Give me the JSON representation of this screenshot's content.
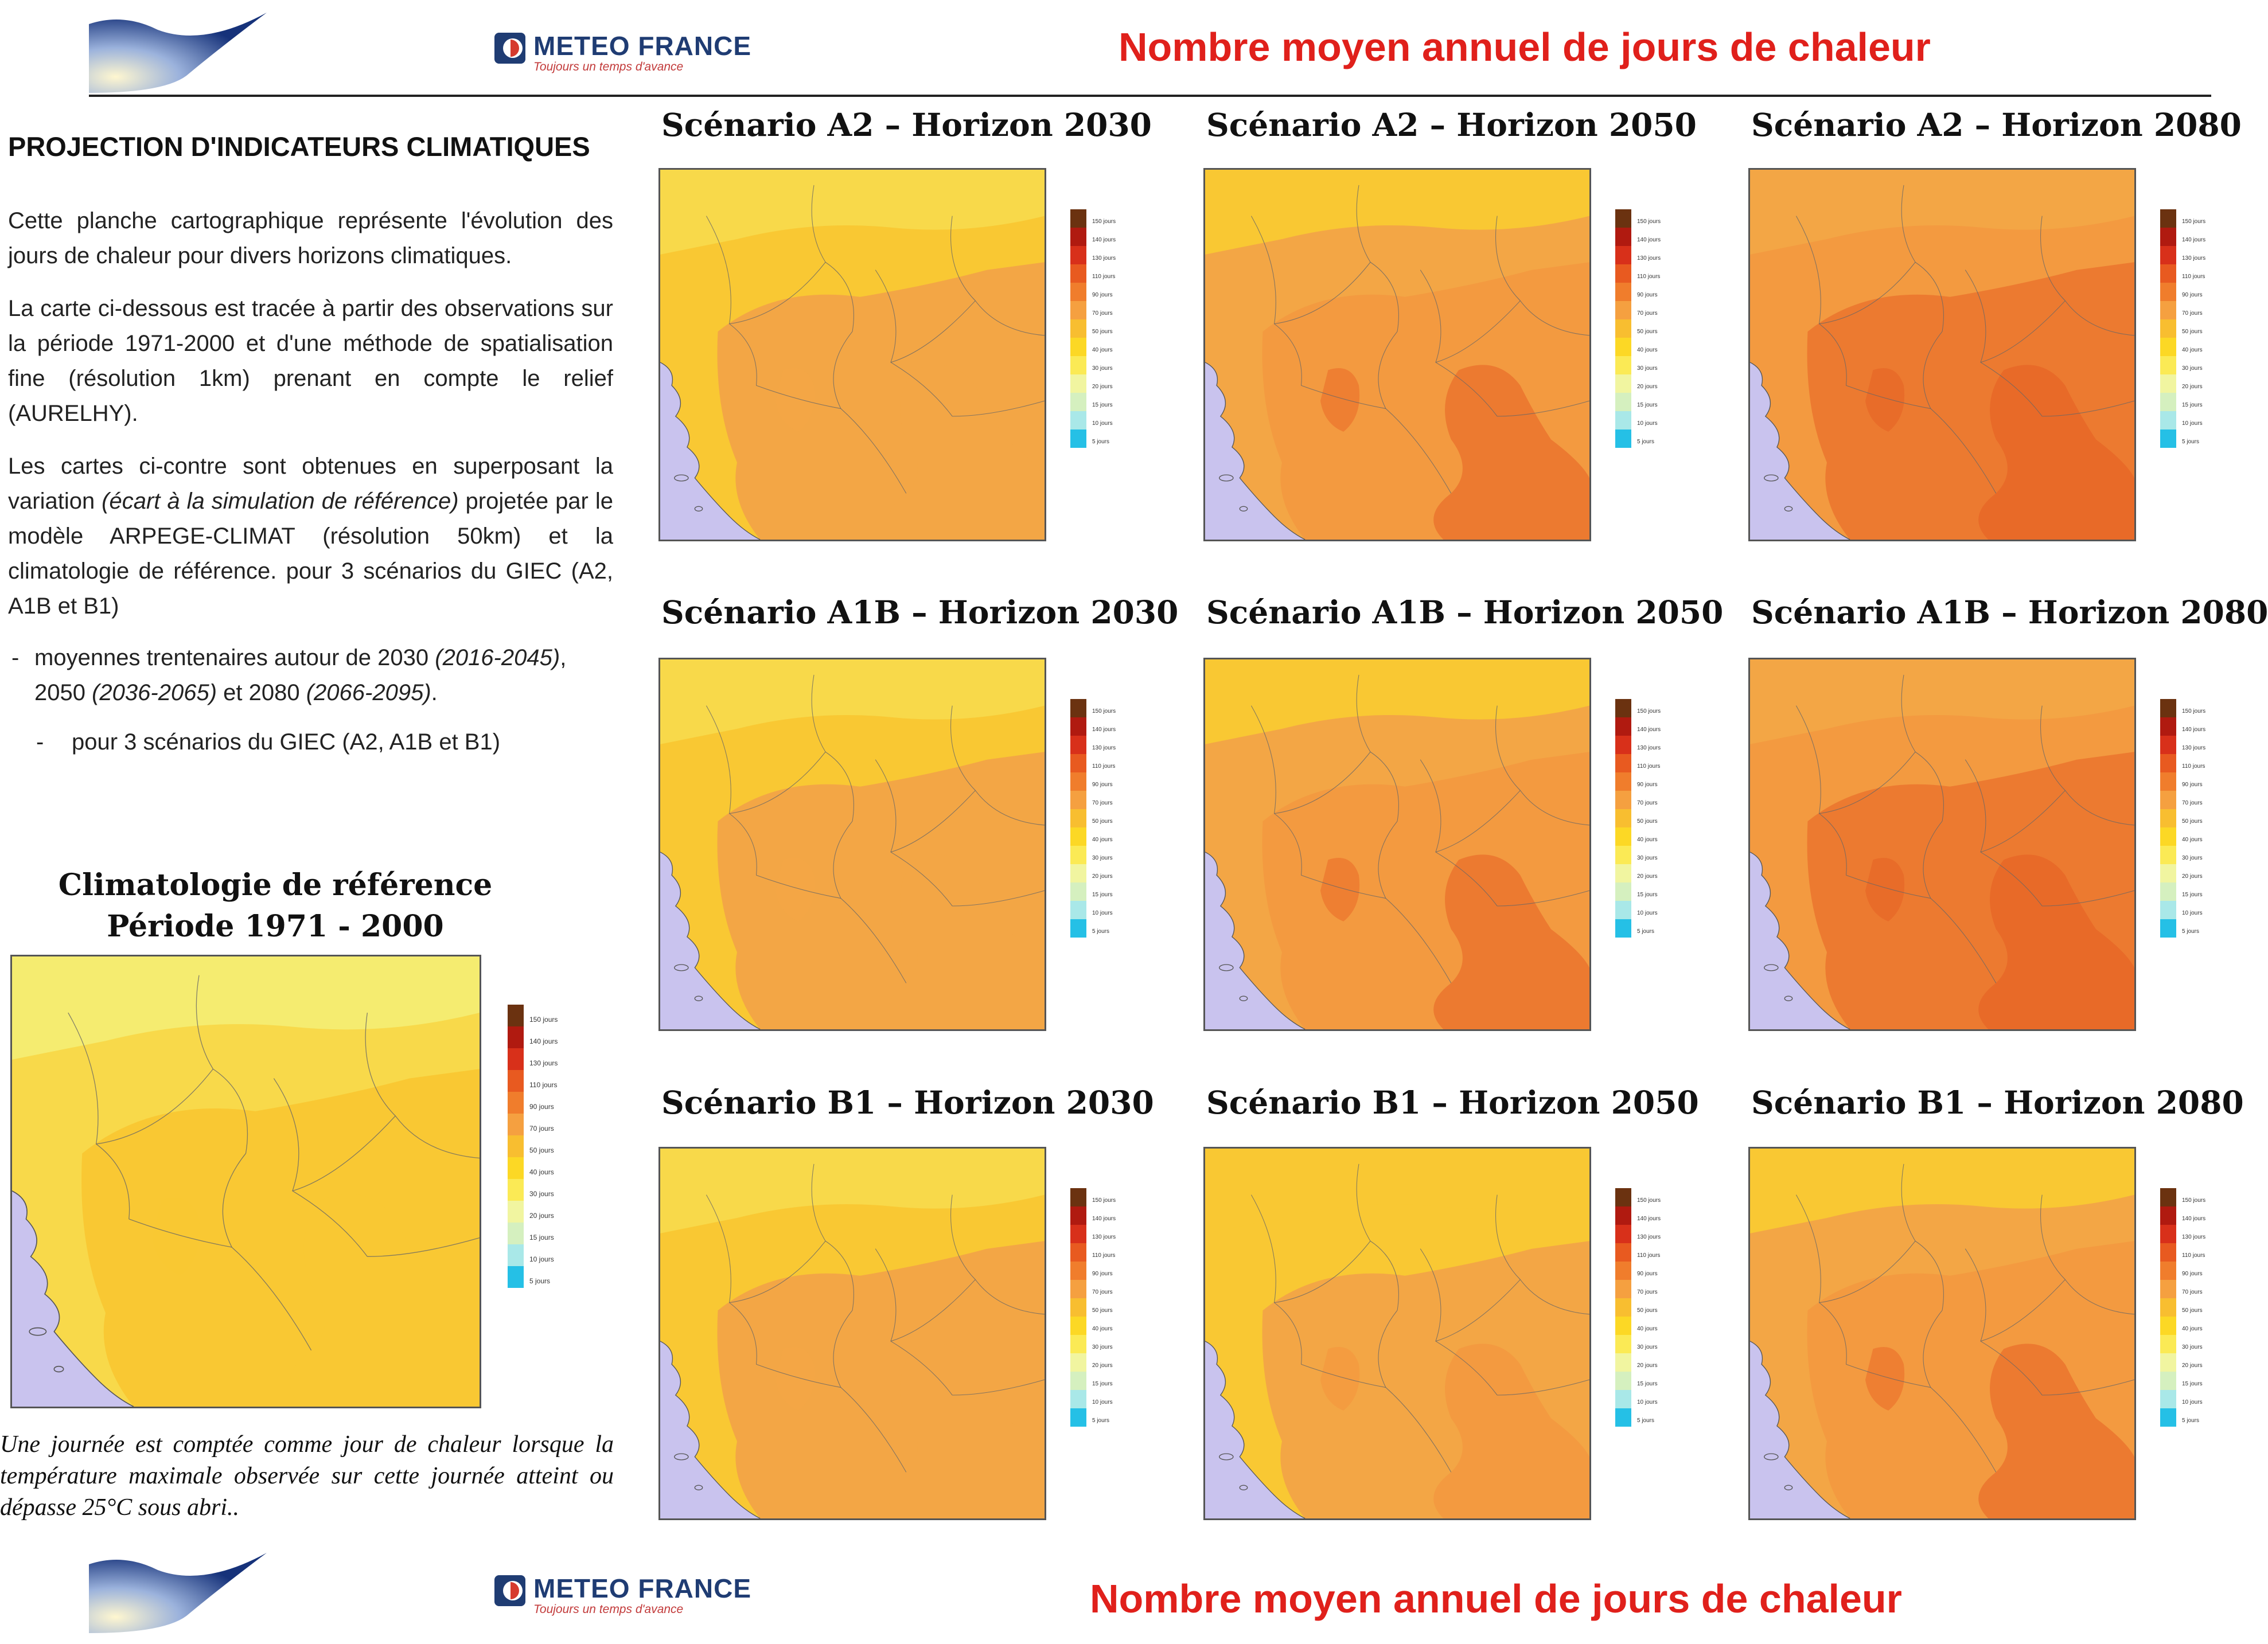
{
  "header": {
    "logo_main": "METEO FRANCE",
    "logo_sub": "Toujours un temps d'avance",
    "title": "Nombre moyen annuel de jours de chaleur"
  },
  "footer": {
    "logo_main": "METEO FRANCE",
    "logo_sub": "Toujours un temps d'avance",
    "title": "Nombre moyen annuel de jours de chaleur"
  },
  "sidebar": {
    "heading": "PROJECTION D'INDICATEURS CLIMATIQUES",
    "p1": "Cette planche cartographique représente l'évolution des jours de chaleur pour divers horizons climatiques.",
    "p2": "La carte ci-dessous est tracée à partir des observations sur la période 1971-2000 et d'une méthode de spatialisation fine (résolution 1km) prenant en compte le relief (AURELHY).",
    "p3_a": "Les cartes ci-contre sont obtenues en superposant la variation ",
    "p3_em": "(écart à la simulation de référence)",
    "p3_b": " projetée par le modèle ARPEGE-CLIMAT (résolution 50km) et la climatologie de référence. pour 3 scénarios du GIEC (A2, A1B et B1)",
    "bullet1_a": "moyennes trentenaires autour de 2030 ",
    "bullet1_em1": "(2016-2045)",
    "bullet1_b": ", 2050 ",
    "bullet1_em2": "(2036-2065)",
    "bullet1_c": " et 2080 ",
    "bullet1_em3": "(2066-2095)",
    "bullet1_d": ".",
    "bullet2": "pour 3 scénarios du GIEC (A2, A1B et B1)",
    "dash": "-",
    "ref_title_1": "Climatologie de référence",
    "ref_title_2": "Période 1971 - 2000",
    "note": "Une journée est comptée comme jour de chaleur lorsque la température maximale observée sur cette journée atteint ou dépasse 25°C sous abri.."
  },
  "legend": {
    "labels": [
      "150 jours",
      "140 jours",
      "130 jours",
      "110 jours",
      "90 jours",
      "70 jours",
      "50 jours",
      "40 jours",
      "30 jours",
      "20 jours",
      "15 jours",
      "10 jours",
      "5 jours"
    ],
    "colors": [
      "#6b3210",
      "#b01a10",
      "#d8301a",
      "#e85a20",
      "#f07d2c",
      "#f5a040",
      "#f8be30",
      "#fcd825",
      "#fbea55",
      "#f1f5a0",
      "#d5f0bf",
      "#a9e8e8",
      "#25c0e6"
    ]
  },
  "map_colors": {
    "very_light": "#f5ec70",
    "light": "#f8d94a",
    "yellow": "#f9c833",
    "orange_light": "#f3a645",
    "orange": "#f39a40",
    "orange_mid": "#f08c3a",
    "orange_dark": "#ec7a30",
    "red_orange": "#e86a28",
    "sea": "#c9c3ee"
  },
  "maps": [
    {
      "title": "Scénario A2 – Horizon 2030",
      "level": 1
    },
    {
      "title": "Scénario A2 – Horizon 2050",
      "level": 3
    },
    {
      "title": "Scénario A2 – Horizon 2080",
      "level": 4
    },
    {
      "title": "Scénario A1B – Horizon 2030",
      "level": 1
    },
    {
      "title": "Scénario A1B – Horizon 2050",
      "level": 3
    },
    {
      "title": "Scénario A1B – Horizon 2080",
      "level": 4
    },
    {
      "title": "Scénario B1 – Horizon 2030",
      "level": 1
    },
    {
      "title": "Scénario B1 – Horizon 2050",
      "level": 2
    },
    {
      "title": "Scénario B1 – Horizon 2080",
      "level": 3
    }
  ]
}
